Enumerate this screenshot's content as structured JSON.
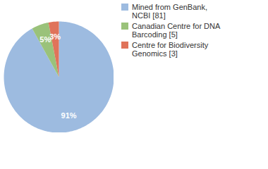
{
  "chart_data": {
    "type": "pie",
    "categories": [
      "Mined from GenBank, NCBI [81]",
      "Canadian Centre for DNA Barcoding [5]",
      "Centre for Biodiversity Genomics [3]"
    ],
    "values": [
      91,
      5,
      3
    ],
    "value_labels": [
      "91%",
      "5%",
      "3%"
    ],
    "colors": [
      "#9dbbe0",
      "#9ac27a",
      "#e0735a"
    ],
    "data_labels": true,
    "legend": "top-right"
  }
}
